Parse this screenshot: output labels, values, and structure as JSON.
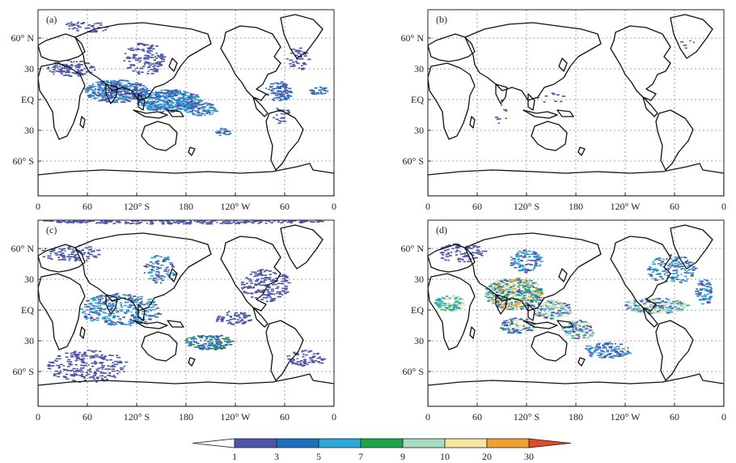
{
  "panels": [
    {
      "label": "(a)"
    },
    {
      "label": "(b)"
    },
    {
      "label": "(c)"
    },
    {
      "label": "(d)"
    }
  ],
  "lat_ticks": [
    "60° N",
    "30",
    "EQ",
    "30",
    "60° S"
  ],
  "lon_ticks": [
    "0",
    "60",
    "120° S",
    "180",
    "120° W",
    "60",
    "0"
  ],
  "colorbar": {
    "tick_labels": [
      "1",
      "3",
      "5",
      "7",
      "9",
      "10",
      "20",
      "30"
    ],
    "colors": [
      "#ffffff",
      "#4b56a8",
      "#1b6fc0",
      "#2aa8dc",
      "#19a64a",
      "#a8dcc0",
      "#f4e6a0",
      "#f0a030",
      "#e04a2a"
    ]
  },
  "colors": {
    "coast": "#111111",
    "frame": "#222222",
    "grid": "#888888"
  }
}
